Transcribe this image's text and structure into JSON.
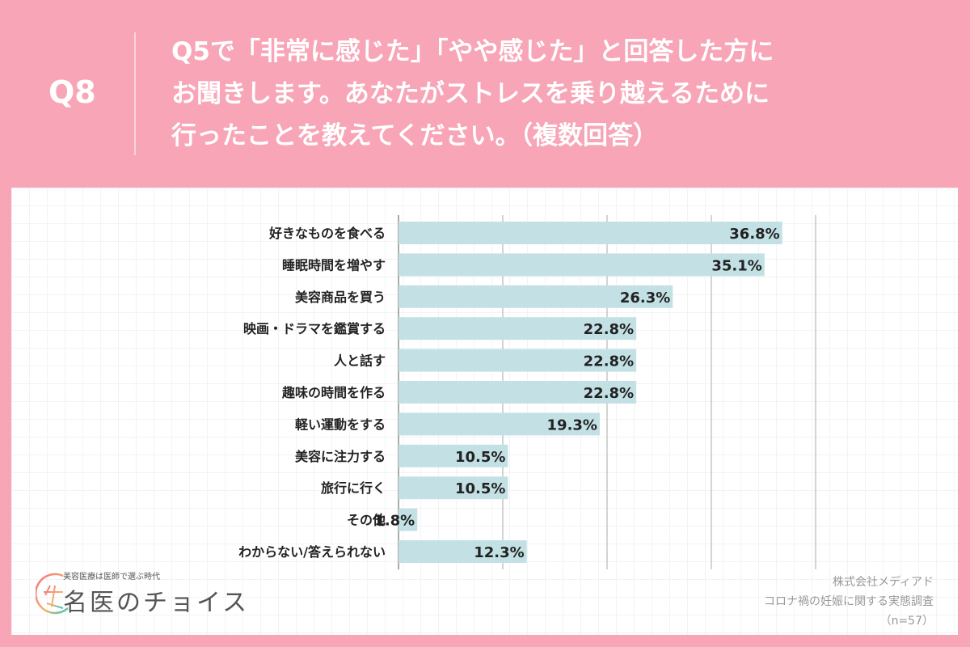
{
  "header": {
    "question_no": "Q8",
    "question": "Q5で「非常に感じた」「やや感じた」と回答した方に\nお聞きします。あなたがストレスを乗り越えるために\n行ったことを教えてください。（複数回答）"
  },
  "chart_data": {
    "type": "bar",
    "orientation": "horizontal",
    "unit": "%",
    "xlim": [
      0,
      40
    ],
    "gridlines": [
      0,
      10,
      20,
      30,
      40
    ],
    "grid": true,
    "bar_color": "#c3e1e5",
    "categories": [
      "好きなものを食べる",
      "睡眠時間を増やす",
      "美容商品を買う",
      "映画・ドラマを鑑賞する",
      "人と話す",
      "趣味の時間を作る",
      "軽い運動をする",
      "美容に注力する",
      "旅行に行く",
      "その他",
      "わからない/答えられない"
    ],
    "values": [
      36.8,
      35.1,
      26.3,
      22.8,
      22.8,
      22.8,
      19.3,
      10.5,
      10.5,
      1.8,
      12.3
    ],
    "labels": [
      "36.8%",
      "35.1%",
      "26.3%",
      "22.8%",
      "22.8%",
      "22.8%",
      "19.3%",
      "10.5%",
      "10.5%",
      "1.8%",
      "12.3%"
    ]
  },
  "logo": {
    "tagline": "美容医療は医師で選ぶ時代",
    "name": "名医のチョイス"
  },
  "credit": {
    "company": "株式会社メディアド",
    "survey": "コロナ禍の妊娠に関する実態調査",
    "sample": "（n=57）"
  },
  "colors": {
    "background": "#f7a5b7",
    "bar": "#c3e1e5"
  }
}
